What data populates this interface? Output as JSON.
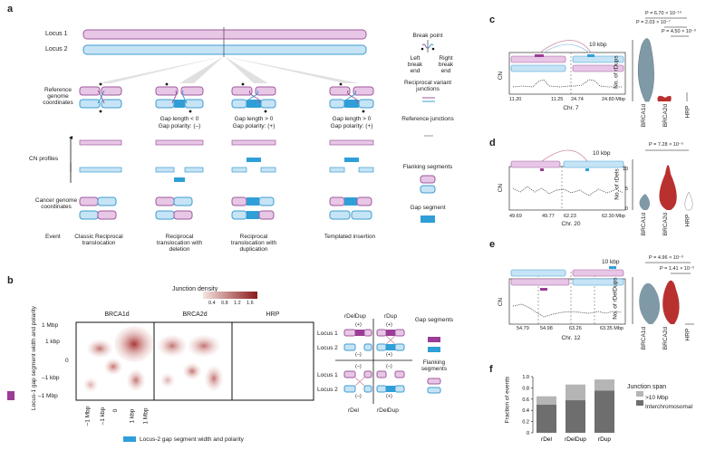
{
  "panel_a": {
    "letter": "a",
    "locus1": "Locus 1",
    "locus2": "Locus 2",
    "break_point": "Break point",
    "left_break_end": "Left break end",
    "right_break_end": "Right break end",
    "reciprocal_variant_junctions": "Reciprocal variant junctions",
    "reference_junctions": "Reference junctions",
    "flanking_segments": "Flanking segments",
    "gap_segment": "Gap segment",
    "row_reference": "Reference genome coordinates",
    "row_cn": "CN profiles",
    "row_cancer": "Cancer genome coordinates",
    "row_event": "Event",
    "gap1_a": "Gap length < 0",
    "gap1_b": "Gap polarity: (–)",
    "gap2_a": "Gap length > 0",
    "gap2_b": "Gap polarity: (+)",
    "gap3_a": "Gap length > 0",
    "gap3_b": "Gap polarity: (+)",
    "events": [
      "Classic Reciprocal translocation",
      "Reciprocal translocation with deletion",
      "Reciprocal translocation with duplication",
      "Templated insertion"
    ]
  },
  "panel_b": {
    "letter": "b",
    "density_title": "Junction density",
    "density_ticks": [
      "0.4",
      "0.8",
      "1.2",
      "1.6"
    ],
    "y_axis_label": "Locus-1 gap segment width and polarity",
    "x_axis_label": "Locus-2 gap segment width and polarity",
    "y_ticks": [
      "1 Mbp",
      "1 kbp",
      "0",
      "–1 kbp",
      "–1 Mbp"
    ],
    "x_ticks": [
      "–1 Mbp",
      "–1 kbp",
      "0",
      "1 kbp",
      "1 Mbp"
    ],
    "groups": [
      "BRCA1d",
      "BRCA2d",
      "HRP"
    ],
    "classes": [
      "rDelDup",
      "rDup",
      "rDel",
      "rDelDup"
    ],
    "locus1": "Locus 1",
    "locus2": "Locus 2",
    "gap_segments": "Gap segments",
    "flanking_segments": "Flanking segments",
    "signs_top": [
      "(+)",
      "(+)",
      "(–)",
      "(+)"
    ],
    "signs_bottom": [
      "(–)",
      "(+)",
      "(–)",
      "(+)"
    ],
    "signs_mid": [
      "(–)",
      "(–)"
    ]
  },
  "panel_c": {
    "letter": "c",
    "scale": "10 kbp",
    "ylabel": "CN",
    "ticks": [
      "11.20",
      "11.25",
      "24.74",
      "24.80 Mbp"
    ],
    "chr": "Chr. 7",
    "violin_ylabel": "No. of rDups",
    "pvals": [
      "P = 6.70 × 10⁻¹⁴",
      "P = 2.03 × 10⁻⁷",
      "P = 4.50 × 10⁻³"
    ],
    "groups": [
      "BRCA1d",
      "BRCA2d",
      "HRP"
    ]
  },
  "panel_d": {
    "letter": "d",
    "scale": "10 kbp",
    "ylabel": "CN",
    "ticks": [
      "49.69",
      "49.77",
      "62.23",
      "62.30 Mbp"
    ],
    "chr": "Chr. 20",
    "violin_ylabel": "No. of rDels",
    "violin_ticks": [
      "0",
      "5",
      "10"
    ],
    "pvals": [
      "P = 7.28 × 10⁻⁵"
    ],
    "groups": [
      "BRCA1d",
      "BRCA2d",
      "HRP"
    ]
  },
  "panel_e": {
    "letter": "e",
    "scale": "10 kbp",
    "ylabel": "CN",
    "ticks": [
      "54.79",
      "54.98",
      "63.26",
      "63.35 Mbp"
    ],
    "chr": "Chr. 12",
    "violin_ylabel": "No. of rDelDups",
    "pvals": [
      "P = 4.96 × 10⁻³",
      "P = 1.41 × 10⁻³"
    ],
    "groups": [
      "BRCA1d",
      "BRCA2d",
      "HRP"
    ]
  },
  "panel_f": {
    "letter": "f",
    "legend_title": "Junction span",
    "legend_items": [
      ">10 Mbp",
      "Interchromosomal"
    ],
    "colors": {
      "gt10": "#b5b5b5",
      "inter": "#6e6e6e"
    }
  },
  "chart_data": {
    "type": "bar",
    "categories": [
      "rDel",
      "rDelDup",
      "rDup"
    ],
    "series": [
      {
        "name": "Interchromosomal",
        "values": [
          0.5,
          0.58,
          0.75
        ]
      },
      {
        "name": ">10 Mbp",
        "values": [
          0.15,
          0.28,
          0.2
        ]
      }
    ],
    "ylabel": "Fraction of events",
    "ylim": [
      0,
      1.0
    ],
    "yticks": [
      "0",
      "0.2",
      "0.4",
      "0.6",
      "0.8",
      "1.0"
    ],
    "stacked": true
  },
  "colors": {
    "pink": "#e8c6e6",
    "pink_stroke": "#9e5a9c",
    "blue": "#c6e4f5",
    "blue_stroke": "#3d9cd1",
    "gap_pink": "#9b3c97",
    "gap_blue": "#2f9fd8",
    "red": "#b8312f",
    "slate": "#7f9aa6"
  }
}
